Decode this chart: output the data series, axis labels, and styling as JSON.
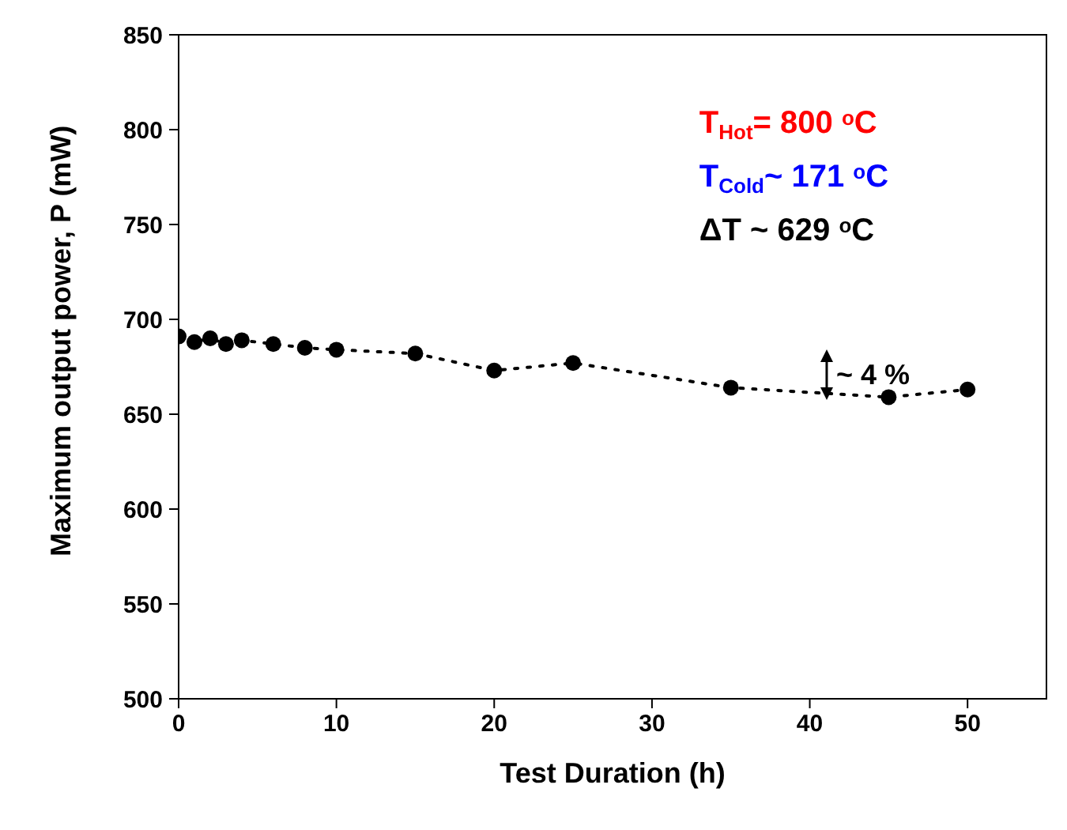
{
  "chart_data": {
    "type": "line",
    "xlabel": "Test Duration (h)",
    "ylabel": "Maximum output power, P (mW)",
    "x": [
      0,
      1,
      2,
      3,
      4,
      6,
      8,
      10,
      15,
      20,
      25,
      35,
      45,
      50
    ],
    "series": [
      {
        "color": "#000000",
        "values": [
          691,
          688,
          690,
          687,
          689,
          687,
          685,
          684,
          682,
          673,
          677,
          664,
          659,
          663
        ]
      }
    ],
    "xlim": [
      0,
      55
    ],
    "xticks": [
      0,
      10,
      20,
      30,
      40,
      50
    ],
    "ylim": [
      500,
      850
    ],
    "yticks": [
      500,
      550,
      600,
      650,
      700,
      750,
      800,
      850
    ],
    "marker": "circle",
    "line_style": "dotted",
    "grid": false,
    "legend": false,
    "annotations": [
      "~ 4 %",
      "T$_{Hot}$= 800 $^{o}$C",
      "T$_{Cold}$~ 171 $^{o}$C",
      "ΔT ~ 629 $^{o}$C"
    ]
  }
}
